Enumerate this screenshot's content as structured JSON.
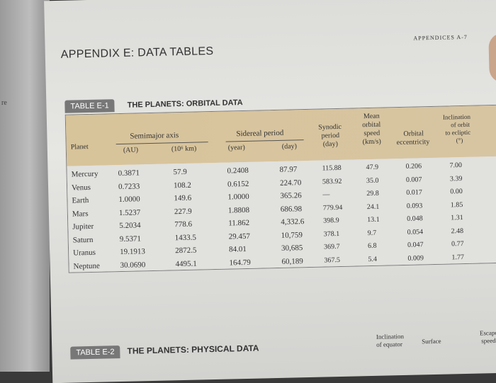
{
  "left_page_fragment": "re",
  "header": {
    "title": "APPENDIX E: DATA TABLES",
    "right": "APPENDICES   A-7"
  },
  "table1": {
    "label": "TABLE E-1",
    "title": "THE PLANETS: ORBITAL DATA",
    "headers": {
      "planet": "Planet",
      "semimajor": "Semimajor axis",
      "au": "(AU)",
      "km": "(10⁶ km)",
      "sidereal": "Sidereal period",
      "year": "(year)",
      "day": "(day)",
      "synodic_1": "Synodic",
      "synodic_2": "period",
      "synodic_3": "(day)",
      "speed_1": "Mean",
      "speed_2": "orbital",
      "speed_3": "speed",
      "speed_4": "(km/s)",
      "ecc_1": "Orbital",
      "ecc_2": "eccentricity",
      "incl_1": "Inclination",
      "incl_2": "of orbit",
      "incl_3": "to ecliptic",
      "incl_4": "(°)"
    },
    "rows": [
      {
        "planet": "Mercury",
        "au": "0.3871",
        "km": "57.9",
        "year": "0.2408",
        "day": "87.97",
        "synodic": "115.88",
        "speed": "47.9",
        "ecc": "0.206",
        "incl": "7.00"
      },
      {
        "planet": "Venus",
        "au": "0.7233",
        "km": "108.2",
        "year": "0.6152",
        "day": "224.70",
        "synodic": "583.92",
        "speed": "35.0",
        "ecc": "0.007",
        "incl": "3.39"
      },
      {
        "planet": "Earth",
        "au": "1.0000",
        "km": "149.6",
        "year": "1.0000",
        "day": "365.26",
        "synodic": "—",
        "speed": "29.8",
        "ecc": "0.017",
        "incl": "0.00"
      },
      {
        "planet": "Mars",
        "au": "1.5237",
        "km": "227.9",
        "year": "1.8808",
        "day": "686.98",
        "synodic": "779.94",
        "speed": "24.1",
        "ecc": "0.093",
        "incl": "1.85"
      },
      {
        "planet": "Jupiter",
        "au": "5.2034",
        "km": "778.6",
        "year": "11.862",
        "day": "4,332.6",
        "synodic": "398.9",
        "speed": "13.1",
        "ecc": "0.048",
        "incl": "1.31"
      },
      {
        "planet": "Saturn",
        "au": "9.5371",
        "km": "1433.5",
        "year": "29.457",
        "day": "10,759",
        "synodic": "378.1",
        "speed": "9.7",
        "ecc": "0.054",
        "incl": "2.48"
      },
      {
        "planet": "Uranus",
        "au": "19.1913",
        "km": "2872.5",
        "year": "84.01",
        "day": "30,685",
        "synodic": "369.7",
        "speed": "6.8",
        "ecc": "0.047",
        "incl": "0.77"
      },
      {
        "planet": "Neptune",
        "au": "30.0690",
        "km": "4495.1",
        "year": "164.79",
        "day": "60,189",
        "synodic": "367.5",
        "speed": "5.4",
        "ecc": "0.009",
        "incl": "1.77"
      }
    ]
  },
  "table2": {
    "label": "TABLE E-2",
    "title": "THE PLANETS: PHYSICAL DATA",
    "inclination_1": "Inclination",
    "inclination_2": "of equator",
    "surface": "Surface",
    "escape_1": "Escape",
    "escape_2": "speed"
  }
}
